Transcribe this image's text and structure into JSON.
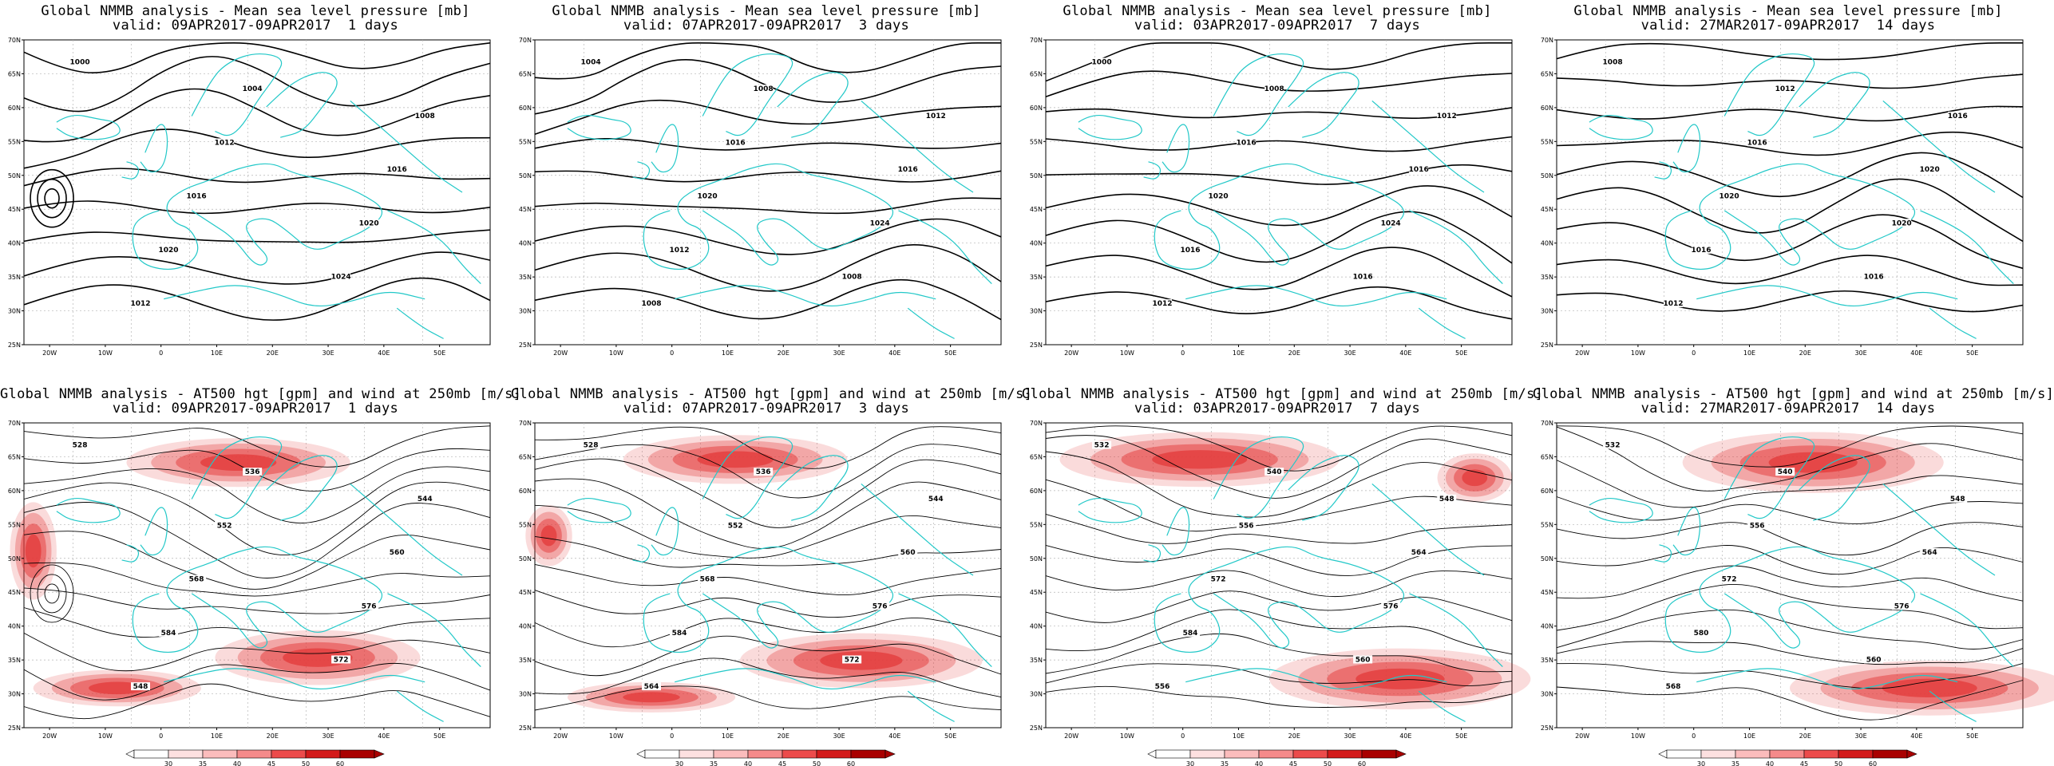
{
  "chart_data": [
    {
      "type": "contour",
      "title": "Global NMMB analysis - Mean sea level pressure [mb]",
      "subtitle": "valid: 09APR2017-09APR2017  1 days",
      "contour_labels": [
        "1000",
        "1004",
        "1008",
        "1012",
        "1016",
        "1016",
        "1020",
        "1020",
        "1024",
        "1012"
      ]
    },
    {
      "type": "contour",
      "title": "Global NMMB analysis - Mean sea level pressure [mb]",
      "subtitle": "valid: 07APR2017-09APR2017  3 days",
      "contour_labels": [
        "1004",
        "1008",
        "1012",
        "1016",
        "1016",
        "1020",
        "1024",
        "1012",
        "1008",
        "1008"
      ]
    },
    {
      "type": "contour",
      "title": "Global NMMB analysis - Mean sea level pressure [mb]",
      "subtitle": "valid: 03APR2017-09APR2017  7 days",
      "contour_labels": [
        "1000",
        "1008",
        "1012",
        "1016",
        "1016",
        "1020",
        "1024",
        "1016",
        "1016",
        "1012"
      ]
    },
    {
      "type": "contour",
      "title": "Global NMMB analysis - Mean sea level pressure [mb]",
      "subtitle": "valid: 27MAR2017-09APR2017  14 days",
      "contour_labels": [
        "1008",
        "1012",
        "1016",
        "1016",
        "1020",
        "1020",
        "1020",
        "1016",
        "1016",
        "1012"
      ]
    },
    {
      "type": "contour",
      "title": "Global NMMB analysis - AT500 hgt [gpm] and wind at 250mb [m/s]",
      "subtitle": "valid: 09APR2017-09APR2017  1 days",
      "contour_labels": [
        "528",
        "536",
        "544",
        "552",
        "560",
        "568",
        "576",
        "584",
        "572",
        "548"
      ]
    },
    {
      "type": "contour",
      "title": "Global NMMB analysis - AT500 hgt [gpm] and wind at 250mb [m/s]",
      "subtitle": "valid: 07APR2017-09APR2017  3 days",
      "contour_labels": [
        "528",
        "536",
        "544",
        "552",
        "560",
        "568",
        "576",
        "584",
        "572",
        "564"
      ]
    },
    {
      "type": "contour",
      "title": "Global NMMB analysis - AT500 hgt [gpm] and wind at 250mb [m/s]",
      "subtitle": "valid: 03APR2017-09APR2017  7 days",
      "contour_labels": [
        "532",
        "540",
        "548",
        "556",
        "564",
        "572",
        "576",
        "584",
        "560",
        "556"
      ]
    },
    {
      "type": "contour",
      "title": "Global NMMB analysis - AT500 hgt [gpm] and wind at 250mb [m/s]",
      "subtitle": "valid: 27MAR2017-09APR2017  14 days",
      "contour_labels": [
        "532",
        "540",
        "548",
        "556",
        "564",
        "572",
        "576",
        "580",
        "560",
        "568"
      ]
    }
  ],
  "axes": {
    "lat_labels": [
      "70N",
      "65N",
      "60N",
      "55N",
      "50N",
      "45N",
      "40N",
      "35N",
      "30N",
      "25N"
    ],
    "lon_labels": [
      "20W",
      "10W",
      "0",
      "10E",
      "20E",
      "30E",
      "40E",
      "50E"
    ]
  },
  "colorbar": {
    "ticks": [
      "30",
      "35",
      "40",
      "45",
      "50",
      "60"
    ],
    "colors": [
      "#ffffff",
      "#fde0e0",
      "#fbbcbc",
      "#f58a8a",
      "#ec4b4b",
      "#d31a1a",
      "#a90000"
    ]
  },
  "colors": {
    "coast": "#22c8c8",
    "contour": "#000000",
    "grid": "#b5b5b5",
    "jet": "#e33a3a"
  }
}
